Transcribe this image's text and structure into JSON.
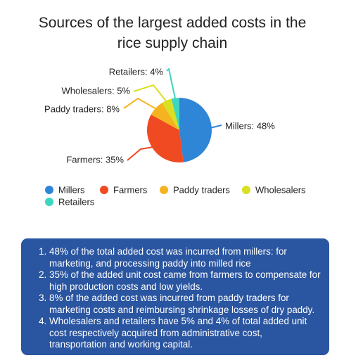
{
  "chart_data": {
    "type": "pie",
    "title": "Sources of the largest added costs in the rice supply chain",
    "categories": [
      "Millers",
      "Farmers",
      "Paddy traders",
      "Wholesalers",
      "Retailers"
    ],
    "values": [
      48,
      35,
      8,
      5,
      4
    ],
    "value_labels": [
      "Millers: 48%",
      "Farmers: 35%",
      "Paddy traders: 8%",
      "Wholesalers: 5%",
      "Retailers: 4%"
    ],
    "colors": [
      "#2f86d6",
      "#f04a23",
      "#f5b41f",
      "#d9e021",
      "#3dd6c0"
    ]
  },
  "notes": [
    "48% of the total added cost was incurred from millers: for marketing, and processing paddy into milled rice",
    "35% of the added unit cost came from farmers to compensate for high production costs and low yields.",
    " 8% of the added cost was incurred from paddy traders for marketing costs and reimbursing shrinkage losses of dry paddy.",
    "Wholesalers and retailers have 5% and 4% of total added unit cost respectively acquired from administrative cost, transportation and working capital."
  ]
}
